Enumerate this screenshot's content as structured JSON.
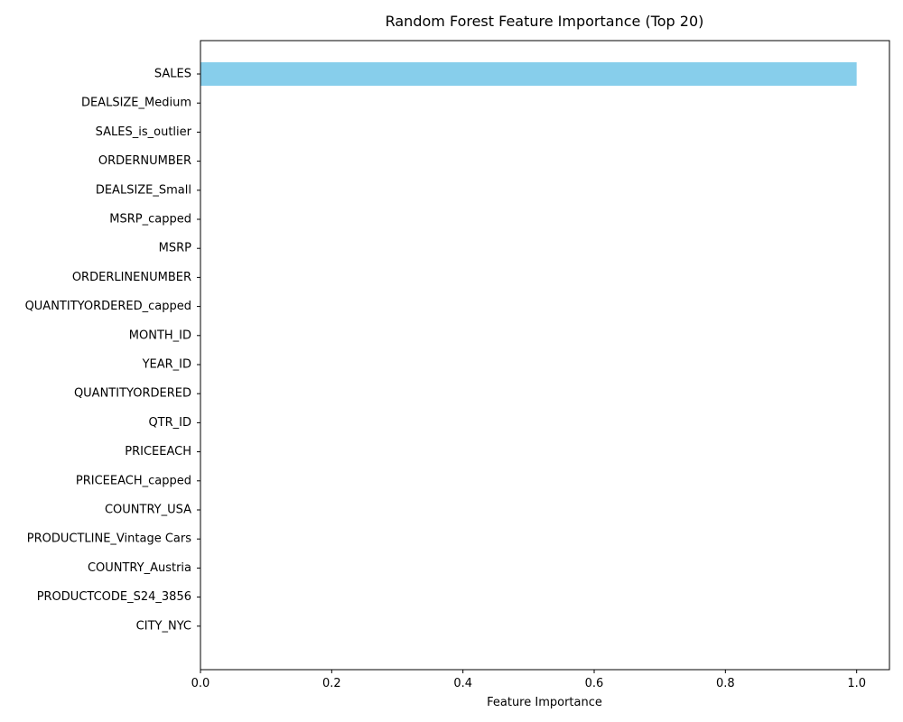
{
  "chart_data": {
    "type": "bar",
    "orientation": "horizontal",
    "title": "Random Forest Feature Importance (Top 20)",
    "xlabel": "Feature Importance",
    "ylabel": "",
    "xlim": [
      0,
      1.05
    ],
    "xticks": [
      "0.0",
      "0.2",
      "0.4",
      "0.6",
      "0.8",
      "1.0"
    ],
    "xtick_values": [
      0,
      0.2,
      0.4,
      0.6,
      0.8,
      1.0
    ],
    "grid": false,
    "bar_color": "#87ceeb",
    "categories": [
      "SALES",
      "DEALSIZE_Medium",
      "SALES_is_outlier",
      "ORDERNUMBER",
      "DEALSIZE_Small",
      "MSRP_capped",
      "MSRP",
      "ORDERLINENUMBER",
      "QUANTITYORDERED_capped",
      "MONTH_ID",
      "YEAR_ID",
      "QUANTITYORDERED",
      "QTR_ID",
      "PRICEEACH",
      "PRICEEACH_capped",
      "COUNTRY_USA",
      "PRODUCTLINE_Vintage Cars",
      "COUNTRY_Austria",
      "PRODUCTCODE_S24_3856",
      "CITY_NYC"
    ],
    "values": [
      1.0,
      0.0,
      0.0,
      0.0,
      0.0,
      0.0,
      0.0,
      0.0,
      0.0,
      0.0,
      0.0,
      0.0,
      0.0,
      0.0,
      0.0,
      0.0,
      0.0,
      0.0,
      0.0,
      0.0
    ]
  }
}
